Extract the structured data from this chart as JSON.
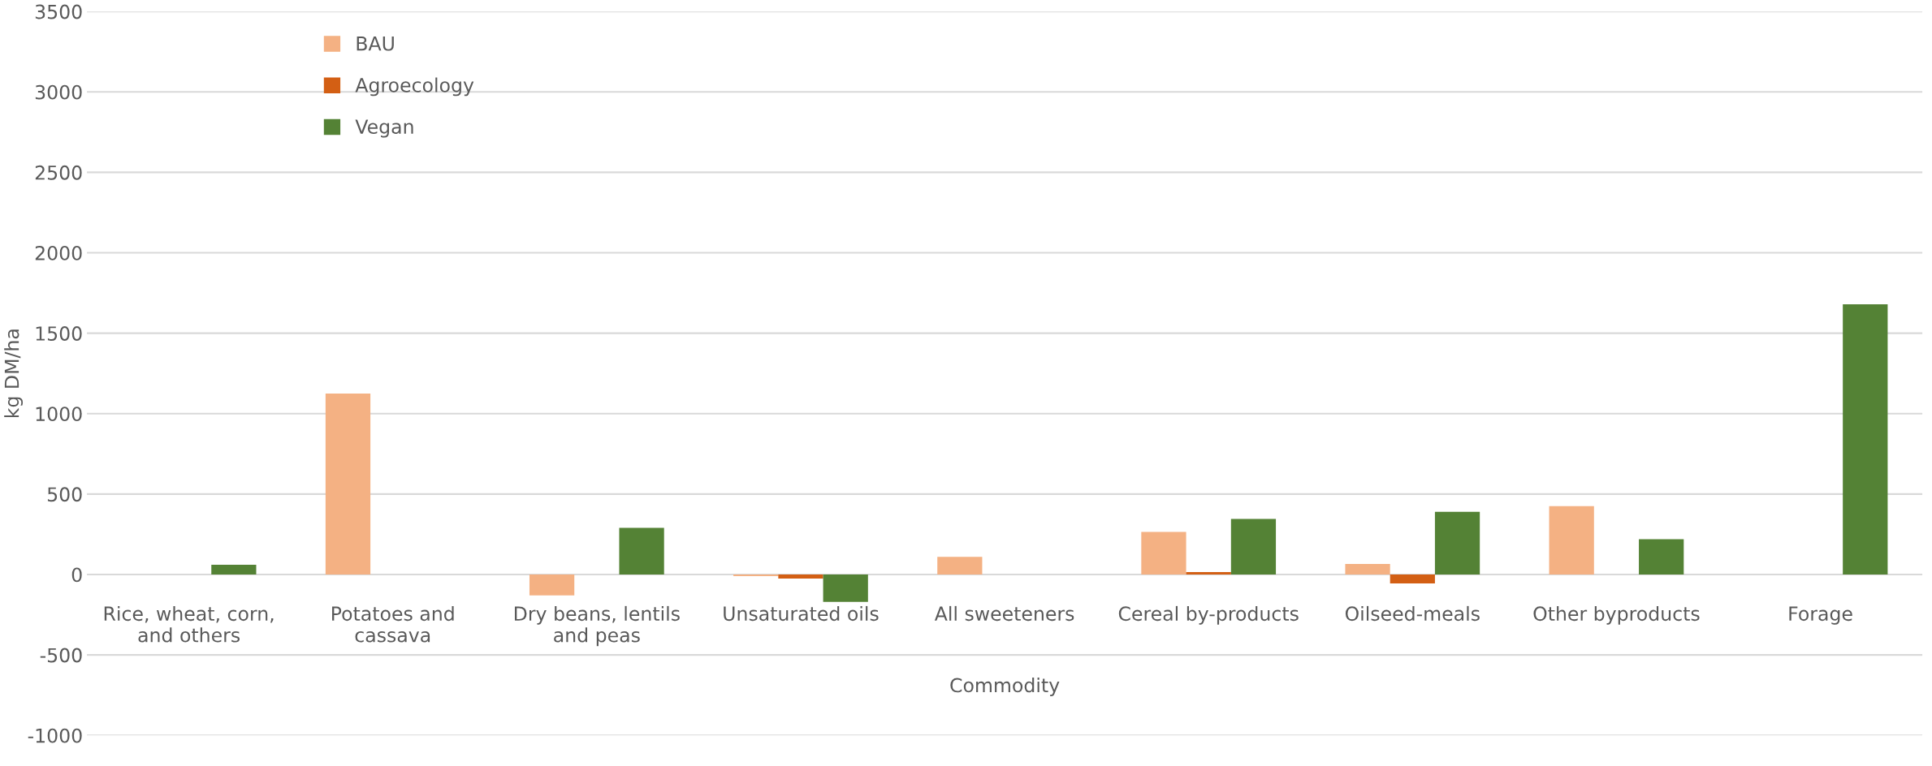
{
  "chart_data": {
    "type": "bar",
    "xlabel": "Commodity",
    "ylabel": "kg DM/ha",
    "categories": [
      "Rice, wheat, corn,\nand others",
      "Potatoes and\ncassava",
      "Dry beans, lentils\nand peas",
      "Unsaturated oils",
      "All sweeteners",
      "Cereal by-products",
      "Oilseed-meals",
      "Other byproducts",
      "Forage"
    ],
    "series": [
      {
        "name": "BAU",
        "color": "#f4b183",
        "values": [
          0,
          1125,
          -130,
          -10,
          110,
          265,
          65,
          425,
          0
        ]
      },
      {
        "name": "Agroecology",
        "color": "#d35f14",
        "values": [
          0,
          0,
          0,
          -25,
          0,
          15,
          -55,
          0,
          0
        ]
      },
      {
        "name": "Vegan",
        "color": "#548235",
        "values": [
          60,
          0,
          290,
          -170,
          0,
          345,
          390,
          220,
          1680
        ]
      }
    ],
    "ylim": [
      -1000,
      3500
    ],
    "yticks": [
      -1000,
      -500,
      0,
      500,
      1000,
      1500,
      2000,
      2500,
      3000,
      3500
    ],
    "grid": "y",
    "legend": "top left"
  }
}
